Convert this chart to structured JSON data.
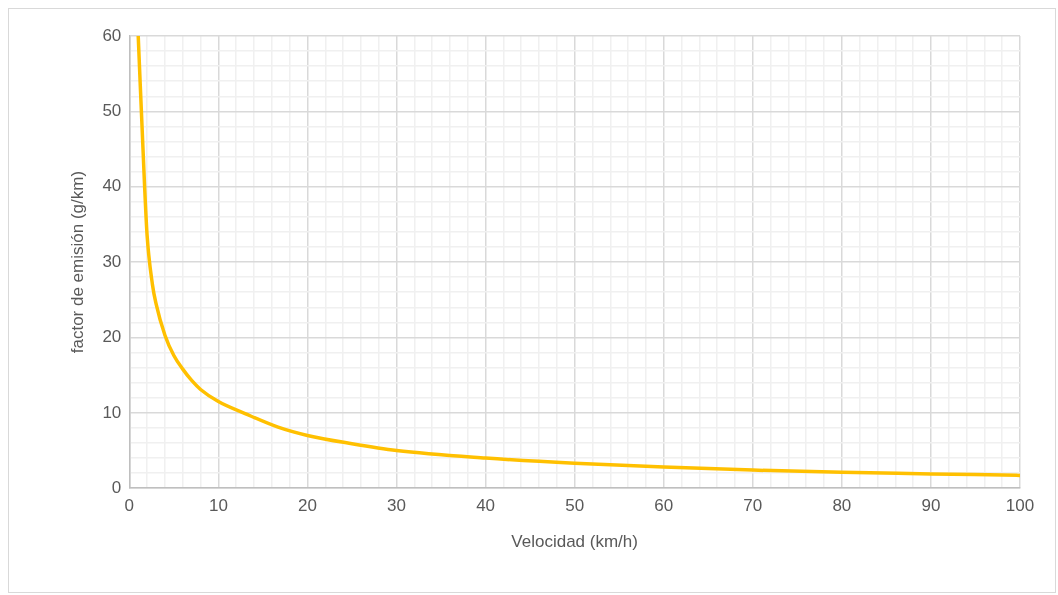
{
  "chart_data": {
    "type": "line",
    "xlabel": "Velocidad (km/h)",
    "ylabel": "factor de emisión (g/km)",
    "x": [
      1,
      1.7,
      2,
      2.6,
      3,
      4,
      5,
      6,
      7,
      8,
      10,
      13,
      16.7,
      20,
      25,
      30,
      40,
      50,
      60,
      70,
      80,
      90,
      100
    ],
    "series": [
      {
        "color": "#ffc000",
        "values": [
          60,
          40.5,
          33.5,
          27,
          24.5,
          20.3,
          17.6,
          15.8,
          14.3,
          13.1,
          11.5,
          9.9,
          8.1,
          7,
          5.9,
          5,
          4,
          3.3,
          2.8,
          2.4,
          2.1,
          1.9,
          1.7
        ]
      }
    ],
    "xlim": [
      0,
      100
    ],
    "ylim": [
      0,
      60
    ],
    "xticks": [
      0,
      {
        "value": 2,
        "label": null
      },
      {
        "value": 4,
        "label": null
      },
      {
        "value": 6,
        "label": null
      },
      {
        "value": 8,
        "label": null
      },
      10,
      {
        "value": 12,
        "label": null
      },
      {
        "value": 14,
        "label": null
      },
      {
        "value": 16,
        "label": null
      },
      {
        "value": 18,
        "label": null
      },
      20,
      {
        "value": 22,
        "label": null
      },
      {
        "value": 24,
        "label": null
      },
      {
        "value": 26,
        "label": null
      },
      {
        "value": 28,
        "label": null
      },
      30,
      {
        "value": 32,
        "label": null
      },
      {
        "value": 34,
        "label": null
      },
      {
        "value": 36,
        "label": null
      },
      {
        "value": 38,
        "label": null
      },
      40,
      {
        "value": 42,
        "label": null
      },
      {
        "value": 44,
        "label": null
      },
      {
        "value": 46,
        "label": null
      },
      {
        "value": 48,
        "label": null
      },
      50,
      {
        "value": 52,
        "label": null
      },
      {
        "value": 54,
        "label": null
      },
      {
        "value": 56,
        "label": null
      },
      {
        "value": 58,
        "label": null
      },
      60,
      {
        "value": 62,
        "label": null
      },
      {
        "value": 64,
        "label": null
      },
      {
        "value": 66,
        "label": null
      },
      {
        "value": 68,
        "label": null
      },
      70,
      {
        "value": 72,
        "label": null
      },
      {
        "value": 74,
        "label": null
      },
      {
        "value": 76,
        "label": null
      },
      {
        "value": 78,
        "label": null
      },
      80,
      {
        "value": 82,
        "label": null
      },
      {
        "value": 84,
        "label": null
      },
      {
        "value": 86,
        "label": null
      },
      {
        "value": 88,
        "label": null
      },
      90,
      {
        "value": 92,
        "label": null
      },
      {
        "value": 94,
        "label": null
      },
      {
        "value": 96,
        "label": null
      },
      {
        "value": 98,
        "label": null
      },
      100
    ],
    "yticks": [
      0,
      {
        "value": 2,
        "label": null
      },
      {
        "value": 4,
        "label": null
      },
      {
        "value": 6,
        "label": null
      },
      {
        "value": 8,
        "label": null
      },
      10,
      {
        "value": 12,
        "label": null
      },
      {
        "value": 14,
        "label": null
      },
      {
        "value": 16,
        "label": null
      },
      {
        "value": 18,
        "label": null
      },
      20,
      {
        "value": 22,
        "label": null
      },
      {
        "value": 24,
        "label": null
      },
      {
        "value": 26,
        "label": null
      },
      {
        "value": 28,
        "label": null
      },
      30,
      {
        "value": 32,
        "label": null
      },
      {
        "value": 34,
        "label": null
      },
      {
        "value": 36,
        "label": null
      },
      {
        "value": 38,
        "label": null
      },
      40,
      {
        "value": 42,
        "label": null
      },
      {
        "value": 44,
        "label": null
      },
      {
        "value": 46,
        "label": null
      },
      {
        "value": 48,
        "label": null
      },
      50,
      {
        "value": 52,
        "label": null
      },
      {
        "value": 54,
        "label": null
      },
      {
        "value": 56,
        "label": null
      },
      {
        "value": 58,
        "label": null
      },
      60
    ],
    "grid": true,
    "legend": false,
    "marker": "none",
    "line_style": "solid"
  }
}
